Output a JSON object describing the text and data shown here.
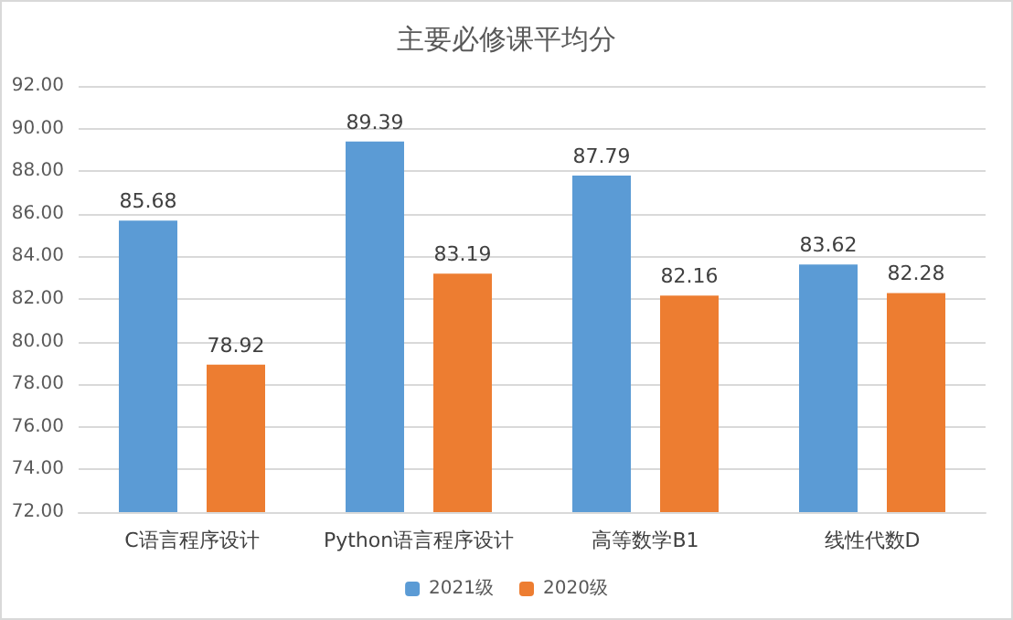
{
  "chart_data": {
    "type": "bar",
    "title": "主要必修课平均分",
    "categories": [
      "C语言程序设计",
      "Python语言程序设计",
      "高等数学B1",
      "线性代数D"
    ],
    "series": [
      {
        "name": "2021级",
        "color": "#5b9bd5",
        "values": [
          85.68,
          89.39,
          87.79,
          83.62
        ]
      },
      {
        "name": "2020级",
        "color": "#ed7d31",
        "values": [
          78.92,
          83.19,
          82.16,
          82.28
        ]
      }
    ],
    "ylim": [
      72,
      92
    ],
    "yticks": [
      {
        "value": 72,
        "label": "72.00"
      },
      {
        "value": 74,
        "label": "74.00"
      },
      {
        "value": 76,
        "label": "76.00"
      },
      {
        "value": 78,
        "label": "78.00"
      },
      {
        "value": 80,
        "label": "80.00"
      },
      {
        "value": 82,
        "label": "82.00"
      },
      {
        "value": 84,
        "label": "84.00"
      },
      {
        "value": 86,
        "label": "86.00"
      },
      {
        "value": 88,
        "label": "88.00"
      },
      {
        "value": 90,
        "label": "90.00"
      },
      {
        "value": 92,
        "label": "92.00"
      }
    ],
    "grid": "y",
    "legend": "bottom",
    "data_labels": true
  }
}
